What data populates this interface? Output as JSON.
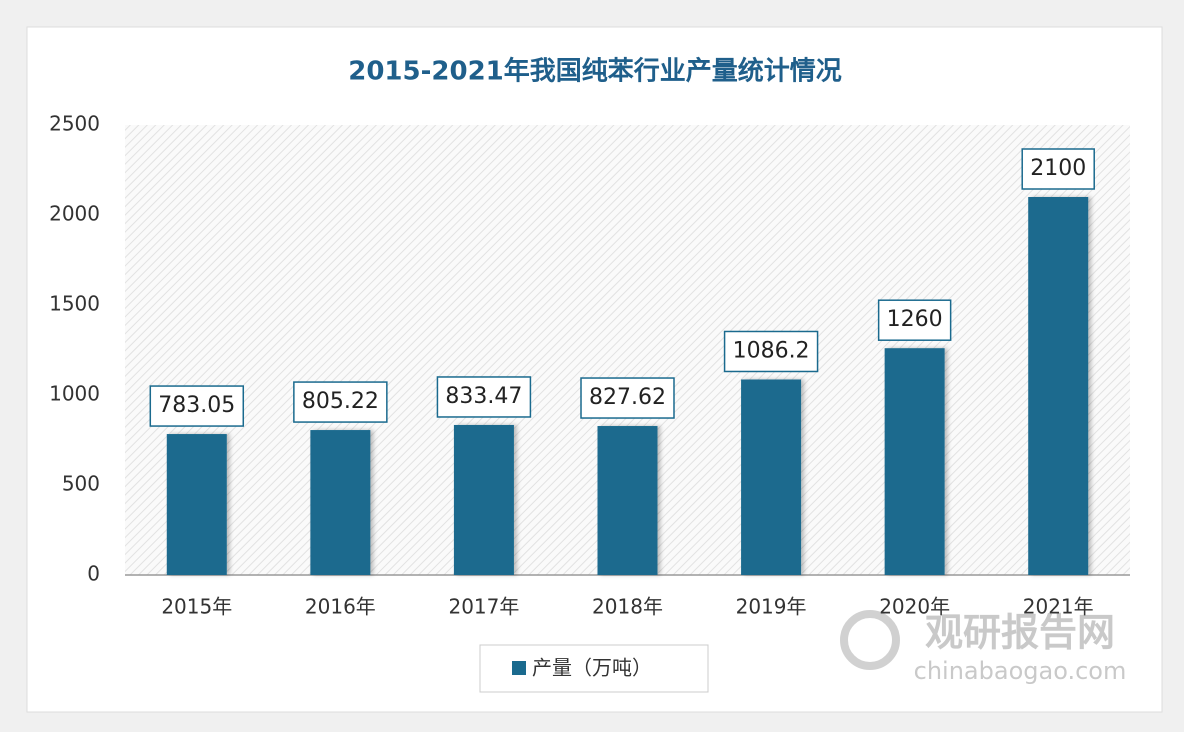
{
  "chart_data": {
    "type": "bar",
    "title": "2015-2021年我国纯苯行业产量统计情况",
    "categories": [
      "2015年",
      "2016年",
      "2017年",
      "2018年",
      "2019年",
      "2020年",
      "2021年"
    ],
    "series": [
      {
        "name": "产量（万吨）",
        "color": "#1a6a8e",
        "values": [
          783.05,
          805.22,
          833.47,
          827.62,
          1086.2,
          1260,
          2100
        ]
      }
    ],
    "ylim": [
      0,
      2500
    ],
    "yticks": [
      0,
      500,
      1000,
      1500,
      2000,
      2500
    ],
    "grid": false,
    "legend": "bottom"
  },
  "watermark": {
    "name": "观研报告网",
    "url": "chinabaogao.com"
  }
}
